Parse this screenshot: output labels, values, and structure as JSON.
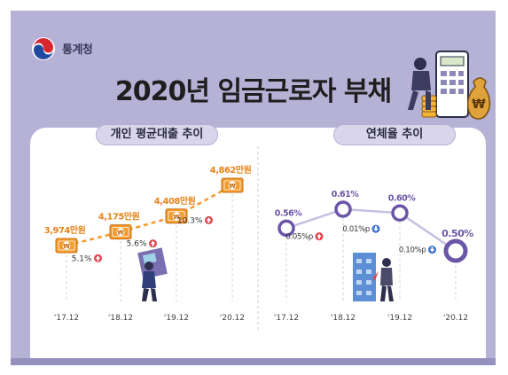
{
  "header": {
    "org_name": "통계청",
    "title": "2020년 임금근로자 부채"
  },
  "colors": {
    "background": "#b6b2d6",
    "loan_orange": "#f39a2b",
    "loan_value_text": "#e6841a",
    "increase_red": "#e2414a",
    "delinquency_purple": "#6b55a6",
    "delinquency_light": "#c5bfe0",
    "increase_blue": "#3a6fd1",
    "axis_text": "#444444"
  },
  "chart_data": [
    {
      "type": "line",
      "title": "개인 평균대출 추이",
      "categories": [
        "'17.12",
        "'18.12",
        "'19.12",
        "'20.12"
      ],
      "values": [
        3974,
        4175,
        4408,
        4862
      ],
      "value_labels": [
        "3,974만원",
        "4,175만원",
        "4,408만원",
        "4,862만원"
      ],
      "change_labels": [
        "5.1%",
        "5.6%",
        "10.3%"
      ],
      "change_icon": "up-arrow-icon",
      "marker_icon": "won-bill-icon"
    },
    {
      "type": "line",
      "title": "연체율 추이",
      "categories": [
        "'17.12",
        "'18.12",
        "'19.12",
        "'20.12"
      ],
      "values": [
        0.56,
        0.61,
        0.6,
        0.5
      ],
      "value_labels": [
        "0.56%",
        "0.61%",
        "0.60%",
        "0.50%"
      ],
      "change_labels": [
        "0.05%p",
        "0.01%p",
        "0.10%p"
      ],
      "change_icons": [
        "up-arrow-icon",
        "down-arrow-icon",
        "down-arrow-icon"
      ],
      "marker_icon": "ring-marker-icon"
    }
  ]
}
